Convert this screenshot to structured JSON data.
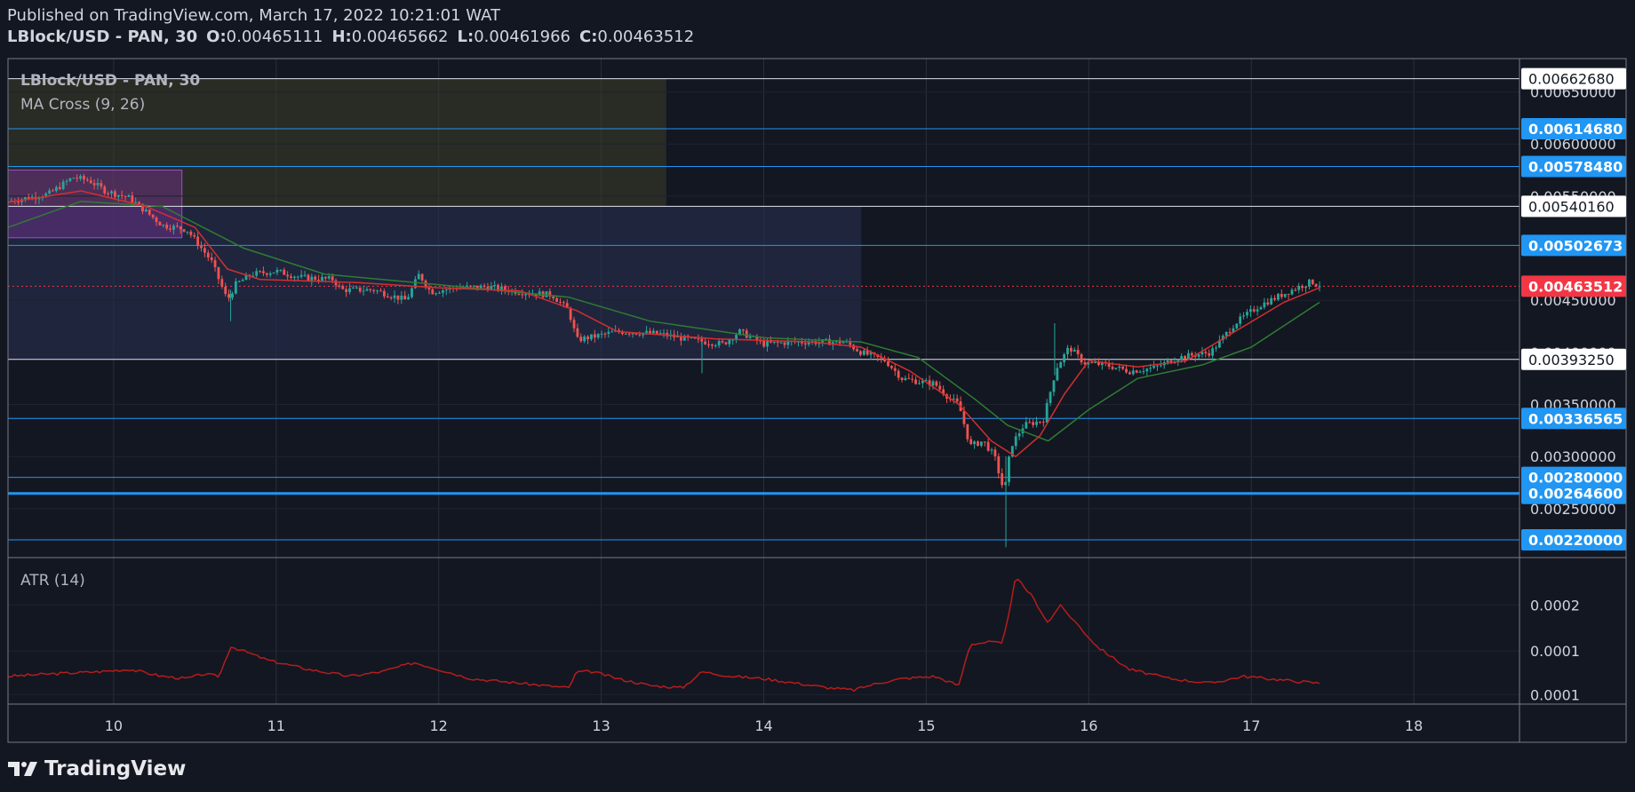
{
  "header": {
    "published": "Published on TradingView.com, March 17, 2022 10:21:01 WAT",
    "symbol": "LBlock/USD - PAN, 30",
    "open_label": "O:",
    "open": "0.00465111",
    "high_label": "H:",
    "high": "0.00465662",
    "low_label": "L:",
    "low": "0.00461966",
    "close_label": "C:",
    "close": "0.00463512"
  },
  "legend": {
    "symbol": "LBlock/USD - PAN, 30",
    "indicator": "MA Cross (9, 26)",
    "atr": "ATR (14)"
  },
  "footer": {
    "brand": "TradingView",
    "logo_icon": "tradingview-logo-icon"
  },
  "colors": {
    "background": "#131722",
    "up": "#26a69a",
    "down": "#ef5350",
    "ma_fast": "#d32f2f",
    "ma_slow": "#2e7d32",
    "level_line": "#2196f3",
    "atr_line": "#b71c1c",
    "price_tag": "#f23645"
  },
  "chart_data": [
    {
      "type": "candlestick",
      "title": "LBlock/USD - PAN, 30",
      "indicators": [
        "MA Cross (9, 26)"
      ],
      "x_ticks": [
        "10",
        "11",
        "12",
        "13",
        "14",
        "15",
        "16",
        "17",
        "18"
      ],
      "x_range": [
        9.35,
        18.65
      ],
      "y_range": [
        0.00203,
        0.00682
      ],
      "y_ticks": [
        "0.00650000",
        "0.00600000",
        "0.00550000",
        "0.00450000",
        "0.00400000",
        "0.00350000",
        "0.00300000",
        "0.00250000"
      ],
      "current_price": "0.00463512",
      "price_levels": [
        {
          "value": 0.0066268,
          "label": "0.00662680",
          "style": "white"
        },
        {
          "value": 0.0061468,
          "label": "0.00614680",
          "style": "blue"
        },
        {
          "value": 0.0057848,
          "label": "0.00578480",
          "style": "blue"
        },
        {
          "value": 0.0054016,
          "label": "0.00540160",
          "style": "white"
        },
        {
          "value": 0.00502673,
          "label": "0.00502673",
          "style": "blue"
        },
        {
          "value": 0.0039325,
          "label": "0.00393250",
          "style": "white"
        },
        {
          "value": 0.00336565,
          "label": "0.00336565",
          "style": "blue"
        },
        {
          "value": 0.0028,
          "label": "0.00280000",
          "style": "blue"
        },
        {
          "value": 0.002646,
          "label": "0.00264600",
          "style": "blue-thick"
        },
        {
          "value": 0.0022,
          "label": "0.00220000",
          "style": "blue"
        }
      ],
      "zones": [
        {
          "x_from": 9.35,
          "x_to": 13.4,
          "y_from": 0.0054016,
          "y_to": 0.0066268,
          "kind": "supply"
        },
        {
          "x_from": 9.35,
          "x_to": 14.6,
          "y_from": 0.0039325,
          "y_to": 0.0054016,
          "kind": "range"
        },
        {
          "x_from": 9.35,
          "x_to": 10.42,
          "y_from": 0.0051,
          "y_to": 0.00575,
          "kind": "highlight"
        }
      ],
      "close_path": [
        [
          9.35,
          0.00545
        ],
        [
          9.6,
          0.00552
        ],
        [
          9.75,
          0.00568
        ],
        [
          9.85,
          0.00565
        ],
        [
          9.95,
          0.00555
        ],
        [
          10.1,
          0.00548
        ],
        [
          10.2,
          0.00535
        ],
        [
          10.3,
          0.00522
        ],
        [
          10.45,
          0.00518
        ],
        [
          10.6,
          0.00488
        ],
        [
          10.7,
          0.0045
        ],
        [
          10.75,
          0.00465
        ],
        [
          10.85,
          0.00475
        ],
        [
          11.0,
          0.00478
        ],
        [
          11.15,
          0.00472
        ],
        [
          11.35,
          0.0047
        ],
        [
          11.4,
          0.0046
        ],
        [
          11.6,
          0.0046
        ],
        [
          11.7,
          0.00455
        ],
        [
          11.8,
          0.0045
        ],
        [
          11.88,
          0.00475
        ],
        [
          11.95,
          0.00458
        ],
        [
          12.1,
          0.00462
        ],
        [
          12.3,
          0.00463
        ],
        [
          12.5,
          0.00458
        ],
        [
          12.7,
          0.00455
        ],
        [
          12.8,
          0.0044
        ],
        [
          12.85,
          0.00412
        ],
        [
          12.95,
          0.00415
        ],
        [
          13.1,
          0.0042
        ],
        [
          13.35,
          0.00418
        ],
        [
          13.55,
          0.00412
        ],
        [
          13.75,
          0.00408
        ],
        [
          13.85,
          0.0042
        ],
        [
          14.0,
          0.00408
        ],
        [
          14.2,
          0.0041
        ],
        [
          14.5,
          0.0041
        ],
        [
          14.6,
          0.004
        ],
        [
          14.75,
          0.00392
        ],
        [
          14.85,
          0.00375
        ],
        [
          14.95,
          0.00372
        ],
        [
          15.05,
          0.0037
        ],
        [
          15.15,
          0.00355
        ],
        [
          15.2,
          0.0035
        ],
        [
          15.27,
          0.0031
        ],
        [
          15.35,
          0.00315
        ],
        [
          15.42,
          0.003
        ],
        [
          15.48,
          0.00265
        ],
        [
          15.52,
          0.0031
        ],
        [
          15.6,
          0.0033
        ],
        [
          15.72,
          0.00335
        ],
        [
          15.8,
          0.00385
        ],
        [
          15.88,
          0.00405
        ],
        [
          15.97,
          0.0039
        ],
        [
          16.1,
          0.00388
        ],
        [
          16.25,
          0.00382
        ],
        [
          16.4,
          0.00385
        ],
        [
          16.55,
          0.00395
        ],
        [
          16.75,
          0.004
        ],
        [
          16.9,
          0.00428
        ],
        [
          17.05,
          0.00445
        ],
        [
          17.25,
          0.0046
        ],
        [
          17.37,
          0.00468
        ],
        [
          17.42,
          0.00463512
        ]
      ],
      "ma_fast_path": [
        [
          9.35,
          0.00544
        ],
        [
          9.8,
          0.00555
        ],
        [
          10.2,
          0.0054
        ],
        [
          10.5,
          0.0052
        ],
        [
          10.7,
          0.0048
        ],
        [
          10.9,
          0.0047
        ],
        [
          11.5,
          0.00467
        ],
        [
          12.0,
          0.00462
        ],
        [
          12.5,
          0.00459
        ],
        [
          12.85,
          0.0044
        ],
        [
          13.1,
          0.0042
        ],
        [
          13.7,
          0.00413
        ],
        [
          14.3,
          0.0041
        ],
        [
          14.6,
          0.00405
        ],
        [
          14.9,
          0.00382
        ],
        [
          15.2,
          0.0035
        ],
        [
          15.4,
          0.00315
        ],
        [
          15.55,
          0.003
        ],
        [
          15.7,
          0.0032
        ],
        [
          15.85,
          0.0036
        ],
        [
          16.0,
          0.00392
        ],
        [
          16.3,
          0.00386
        ],
        [
          16.6,
          0.00392
        ],
        [
          16.9,
          0.0042
        ],
        [
          17.2,
          0.00448
        ],
        [
          17.42,
          0.00462
        ]
      ],
      "ma_slow_path": [
        [
          9.35,
          0.0052
        ],
        [
          9.8,
          0.00545
        ],
        [
          10.3,
          0.0054
        ],
        [
          10.8,
          0.005
        ],
        [
          11.3,
          0.00475
        ],
        [
          12.0,
          0.00465
        ],
        [
          12.8,
          0.00453
        ],
        [
          13.3,
          0.0043
        ],
        [
          14.0,
          0.00414
        ],
        [
          14.6,
          0.0041
        ],
        [
          14.95,
          0.00395
        ],
        [
          15.3,
          0.00355
        ],
        [
          15.5,
          0.0033
        ],
        [
          15.75,
          0.00315
        ],
        [
          16.0,
          0.00345
        ],
        [
          16.3,
          0.00375
        ],
        [
          16.7,
          0.00388
        ],
        [
          17.0,
          0.00405
        ],
        [
          17.42,
          0.00448
        ]
      ]
    },
    {
      "type": "line",
      "title": "ATR (14)",
      "x_range": [
        9.35,
        18.65
      ],
      "y_ticks": [
        "0.0002",
        "0.0001",
        "0.0001"
      ],
      "series": [
        {
          "name": "ATR (14)",
          "points": [
            [
              9.35,
              0.045
            ],
            [
              9.6,
              0.05
            ],
            [
              9.9,
              0.055
            ],
            [
              10.1,
              0.06
            ],
            [
              10.3,
              0.045
            ],
            [
              10.45,
              0.04
            ],
            [
              10.55,
              0.05
            ],
            [
              10.65,
              0.045
            ],
            [
              10.72,
              0.11
            ],
            [
              10.8,
              0.1
            ],
            [
              10.95,
              0.08
            ],
            [
              11.2,
              0.06
            ],
            [
              11.45,
              0.045
            ],
            [
              11.65,
              0.055
            ],
            [
              11.85,
              0.075
            ],
            [
              11.95,
              0.065
            ],
            [
              12.2,
              0.04
            ],
            [
              12.5,
              0.03
            ],
            [
              12.8,
              0.02
            ],
            [
              12.85,
              0.055
            ],
            [
              12.95,
              0.055
            ],
            [
              13.1,
              0.04
            ],
            [
              13.3,
              0.025
            ],
            [
              13.5,
              0.02
            ],
            [
              13.62,
              0.055
            ],
            [
              13.8,
              0.045
            ],
            [
              14.0,
              0.04
            ],
            [
              14.2,
              0.03
            ],
            [
              14.4,
              0.02
            ],
            [
              14.55,
              0.015
            ],
            [
              14.7,
              0.03
            ],
            [
              14.85,
              0.04
            ],
            [
              15.05,
              0.045
            ],
            [
              15.2,
              0.025
            ],
            [
              15.27,
              0.115
            ],
            [
              15.4,
              0.12
            ],
            [
              15.47,
              0.115
            ],
            [
              15.55,
              0.26
            ],
            [
              15.65,
              0.22
            ],
            [
              15.75,
              0.16
            ],
            [
              15.82,
              0.2
            ],
            [
              15.9,
              0.17
            ],
            [
              16.05,
              0.11
            ],
            [
              16.25,
              0.06
            ],
            [
              16.5,
              0.04
            ],
            [
              16.75,
              0.03
            ],
            [
              16.95,
              0.045
            ],
            [
              17.1,
              0.04
            ],
            [
              17.25,
              0.035
            ],
            [
              17.42,
              0.03
            ]
          ]
        }
      ]
    }
  ]
}
